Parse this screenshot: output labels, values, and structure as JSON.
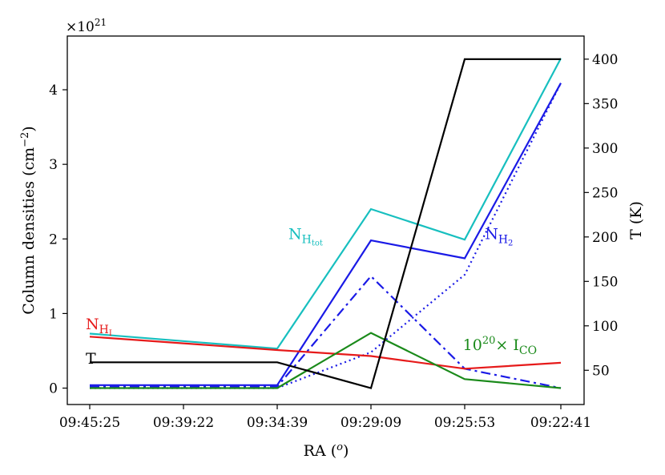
{
  "chart_data": {
    "type": "line",
    "x_label": "RA (",
    "x_label_sup": "o",
    "x_label_close": ")",
    "y_left_label": "Column densities (cm",
    "y_left_label_sup": "−2",
    "y_left_label_close": ")",
    "y_left_multiplier": "×10",
    "y_left_multiplier_exp": "21",
    "y_left_ticks": [
      "0",
      "1",
      "2",
      "3",
      "4"
    ],
    "y_left_range": [
      -0.22,
      4.72
    ],
    "y_right_label": "T (K)",
    "y_right_ticks": [
      "50",
      "100",
      "150",
      "200",
      "250",
      "300",
      "350",
      "400"
    ],
    "y_right_range": [
      11.5,
      426
    ],
    "categories": [
      {
        "label": "09:45:25",
        "color": "#e8a317"
      },
      {
        "label": "09:39:22",
        "color": "#000000"
      },
      {
        "label": "09:34:39",
        "color": "#c8c81e"
      },
      {
        "label": "09:29:09",
        "color": "#cc1fcc"
      },
      {
        "label": "09:25:53",
        "color": "#1a8a1a"
      },
      {
        "label": "09:22:41",
        "color": "#1a1ae6"
      }
    ],
    "left_series": [
      {
        "key": "n_htot",
        "color": "#17bfbf",
        "dash": "",
        "x": [
          0,
          2,
          3,
          4,
          5
        ],
        "values": [
          0.73,
          0.53,
          2.4,
          1.99,
          4.42
        ]
      },
      {
        "key": "n_h2",
        "color": "#1a1ae6",
        "dash": "",
        "x": [
          0,
          2,
          3,
          4,
          5
        ],
        "values": [
          0.04,
          0.04,
          1.98,
          1.74,
          4.09
        ]
      },
      {
        "key": "n_h2_dotted",
        "color": "#1a1ae6",
        "dash": "2,4",
        "x": [
          0,
          2,
          3,
          4,
          5
        ],
        "values": [
          0.0,
          0.0,
          0.48,
          1.52,
          4.09
        ]
      },
      {
        "key": "n_h2_dashdot",
        "color": "#1a1ae6",
        "dash": "12,5,3,5",
        "x": [
          0,
          2,
          3,
          4,
          5
        ],
        "values": [
          0.02,
          0.02,
          1.5,
          0.26,
          0.0
        ]
      },
      {
        "key": "n_hi",
        "color": "#e61a1a",
        "dash": "",
        "x": [
          0,
          2,
          3,
          4,
          5
        ],
        "values": [
          0.69,
          0.51,
          0.43,
          0.26,
          0.34
        ]
      },
      {
        "key": "i_co",
        "color": "#1a8a1a",
        "dash": "",
        "x": [
          0,
          2,
          3,
          4,
          5
        ],
        "values": [
          0.0,
          0.0,
          0.74,
          0.12,
          0.0
        ]
      }
    ],
    "right_series": [
      {
        "key": "temperature",
        "color": "#000000",
        "dash": "",
        "x": [
          0,
          2,
          3,
          4,
          5
        ],
        "values": [
          59,
          59,
          30,
          400,
          400
        ]
      }
    ],
    "annotations": {
      "n_htot": {
        "base": "N",
        "sub": "H",
        "subsub": "tot",
        "color": "#17bfbf",
        "x": 2.12,
        "y": 2.0
      },
      "n_h2": {
        "base": "N",
        "sub": "H",
        "subsub": "2",
        "color": "#1a1ae6",
        "x": 4.21,
        "y": 2.0
      },
      "n_hi": {
        "base": "N",
        "sub": "H",
        "subsub": "I",
        "color": "#e61a1a",
        "x": 0.0,
        "y": 0.79
      },
      "temperature": {
        "text": "T",
        "color": "#000000",
        "x": 0.0,
        "y": 0.33
      },
      "i_co": {
        "prefix": "10",
        "prefix_exp": "20",
        "middle": "× I",
        "sub": "CO",
        "color": "#1a8a1a",
        "x": 3.98,
        "y": 0.51
      }
    }
  }
}
